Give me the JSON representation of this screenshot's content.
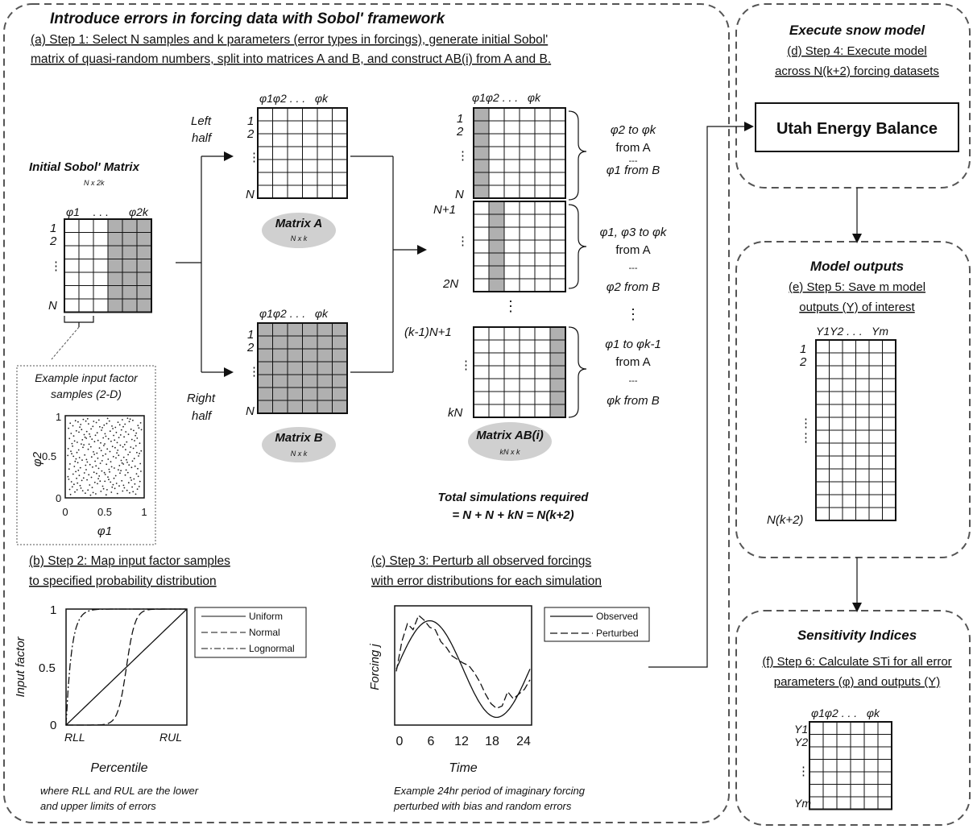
{
  "main_panel": {
    "title": "Introduce errors in forcing data with Sobol' framework",
    "step1_line1": "(a) Step 1: Select N samples and k parameters (error types in forcings), generate initial Sobol'",
    "step1_line2": "matrix of quasi-random numbers, split into matrices A and B, and construct AB(i) from A and B.",
    "initial_matrix": {
      "title": "Initial Sobol' Matrix",
      "dims": "N x 2k",
      "col_first": "φ1",
      "col_dots": ". . .",
      "col_last": "φ2k",
      "row_labels": [
        "1",
        "2",
        "⋮",
        "N"
      ]
    },
    "split": {
      "left": [
        "Left",
        "half"
      ],
      "right": [
        "Right",
        "half"
      ]
    },
    "matrix_a": {
      "cols": "φ1φ2 . . .   φk",
      "label": "Matrix A",
      "dims": "N x k",
      "row_labels": [
        "1",
        "2",
        "⋮",
        "N"
      ]
    },
    "matrix_b": {
      "cols": "φ1φ2 . . .   φk",
      "label": "Matrix B",
      "dims": "N x k",
      "row_labels": [
        "1",
        "2",
        "⋮",
        "N"
      ]
    },
    "matrix_ab": {
      "cols": "φ1φ2 . . .   φk",
      "label": "Matrix AB(i)",
      "dims": "kN x k",
      "row_labels": [
        "1",
        "2",
        "⋮",
        "N",
        "N+1",
        "⋮",
        "2N",
        "(k-1)N+1",
        "⋮",
        "kN"
      ],
      "vertical_dots": "⋮",
      "block1": [
        "φ2 to φk",
        "from A",
        "---",
        "φ1 from B"
      ],
      "block2": [
        "φ1, φ3 to φk",
        "from A",
        "---",
        "φ2 from B"
      ],
      "block3": [
        "φ1 to φk-1",
        "from A",
        "---",
        "φk from B"
      ]
    },
    "total_sim": {
      "line1": "Total simulations required",
      "line2": "= N + N + kN = N(k+2)"
    },
    "example_samples": {
      "title_line1": "Example input factor",
      "title_line2": "samples (2-D)",
      "xlabel": "φ1",
      "ylabel": "φ2",
      "xticks": [
        "0",
        "0.5",
        "1"
      ],
      "yticks": [
        "0",
        "0.5",
        "1"
      ]
    }
  },
  "step2": {
    "title_line1": "(b) Step 2: Map input factor samples",
    "title_line2": "to specified probability distribution",
    "chart": {
      "ylabel": "Input factor",
      "xlabel": "Percentile",
      "yticks": [
        "0",
        "0.5",
        "1"
      ],
      "xticks": [
        "RLL",
        "RUL"
      ],
      "legend": [
        "Uniform",
        "Normal",
        "Lognormal"
      ]
    },
    "caption_line1": "where RLL and RUL are the lower",
    "caption_line2": "and upper limits of errors"
  },
  "step3": {
    "title_line1": "(c) Step 3: Perturb all observed forcings",
    "title_line2": "with error distributions for each simulation",
    "chart": {
      "ylabel": "Forcing j",
      "xlabel": "Time",
      "xticks": [
        "0",
        "6",
        "12",
        "18",
        "24"
      ],
      "legend": [
        "Observed",
        "Perturbed"
      ]
    },
    "caption_line1": "Example 24hr period of imaginary forcing",
    "caption_line2": "perturbed with bias and random errors"
  },
  "execute": {
    "title": "Execute snow model",
    "line1": "(d) Step 4: Execute model",
    "line2": "across N(k+2) forcing datasets",
    "model_name": "Utah Energy Balance"
  },
  "outputs": {
    "title": "Model outputs",
    "line1": "(e) Step 5: Save m model",
    "line2": "outputs (Y) of interest",
    "cols": "Y1Y2 . . .   Ym",
    "row_labels": [
      "1",
      "2",
      "⋮",
      "N(k+2)"
    ]
  },
  "sensitivity": {
    "title": "Sensitivity Indices",
    "line1": "(f) Step 6: Calculate STi for all error",
    "line2": "parameters (φ) and outputs (Y)",
    "cols": "φ1φ2 . . .   φk",
    "row_labels": [
      "Y1",
      "Y2",
      "⋮",
      "Ym"
    ]
  },
  "colors": {
    "border": "#555555",
    "shade": "#b0b0b0",
    "oval": "#d0d0d0",
    "ink": "#111111"
  }
}
